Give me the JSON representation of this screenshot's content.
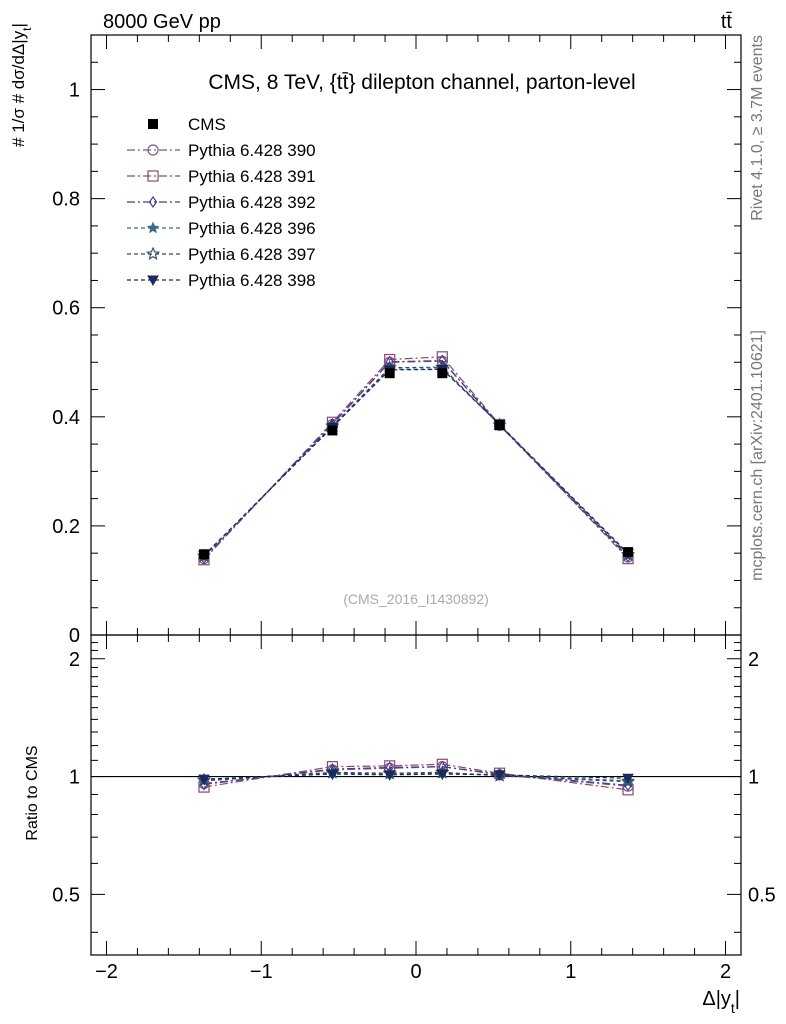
{
  "header": {
    "left": "8000 GeV pp",
    "right": "tt̄"
  },
  "side_labels": {
    "rivet": "Rivet 4.1.0, ≥ 3.7M events",
    "mcplots": "mcplots.cern.ch [arXiv:2401.10621]"
  },
  "chart_data": {
    "type": "line",
    "title": "CMS, 8 TeV, {tt̄} dilepton channel, parton-level",
    "watermark": "(CMS_2016_I1430892)",
    "xlabel": "Δ|y_t|",
    "ylabel": "#1/σ # dσ/dΔ|y_t|",
    "ratio_ylabel": "Ratio to CMS",
    "xlim": [
      -2.1,
      2.1
    ],
    "ylim": [
      0,
      1.1
    ],
    "ratio_ylim": [
      0.35,
      2.3
    ],
    "x_ticks": [
      "−2",
      "−1",
      "0",
      "1",
      "2"
    ],
    "y_ticks": [
      "0",
      "0.2",
      "0.4",
      "0.6",
      "0.8",
      "1"
    ],
    "ratio_ticks": [
      "0.5",
      "1",
      "2"
    ],
    "x": [
      -1.37,
      -0.54,
      -0.17,
      0.17,
      0.54,
      1.37
    ],
    "data": {
      "name": "CMS",
      "values": [
        0.148,
        0.375,
        0.48,
        0.48,
        0.385,
        0.152
      ]
    },
    "series": [
      {
        "name": "Pythia 6.428 390",
        "marker": "circle-open",
        "color": "#7a5a8a",
        "dash": "8 3 2 3",
        "values": [
          0.14,
          0.386,
          0.5,
          0.502,
          0.384,
          0.143
        ]
      },
      {
        "name": "Pythia 6.428 391",
        "marker": "square-open",
        "color": "#8a4a6a",
        "dash": "8 3 2 3",
        "values": [
          0.138,
          0.39,
          0.505,
          0.51,
          0.386,
          0.14
        ]
      },
      {
        "name": "Pythia 6.428 392",
        "marker": "diamond-open",
        "color": "#4a3a8a",
        "dash": "8 3 2 3",
        "values": [
          0.141,
          0.387,
          0.501,
          0.503,
          0.385,
          0.144
        ]
      },
      {
        "name": "Pythia 6.428 396",
        "marker": "star-filled",
        "color": "#3a6a8a",
        "dash": "4 3",
        "values": [
          0.144,
          0.382,
          0.487,
          0.488,
          0.386,
          0.148
        ]
      },
      {
        "name": "Pythia 6.428 397",
        "marker": "star-open",
        "color": "#2a4a6a",
        "dash": "4 3",
        "values": [
          0.145,
          0.383,
          0.49,
          0.491,
          0.385,
          0.147
        ]
      },
      {
        "name": "Pythia 6.428 398",
        "marker": "triangle-down",
        "color": "#1a2a5a",
        "dash": "4 3",
        "values": [
          0.146,
          0.381,
          0.486,
          0.487,
          0.386,
          0.15
        ]
      }
    ],
    "ratio": {
      "Pythia 6.428 390": [
        0.96,
        1.04,
        1.05,
        1.06,
        1.01,
        0.945
      ],
      "Pythia 6.428 391": [
        0.94,
        1.06,
        1.065,
        1.075,
        1.02,
        0.925
      ],
      "Pythia 6.428 392": [
        0.955,
        1.045,
        1.055,
        1.06,
        1.015,
        0.95
      ],
      "Pythia 6.428 396": [
        0.975,
        1.02,
        1.015,
        1.02,
        1.01,
        0.975
      ],
      "Pythia 6.428 397": [
        0.98,
        1.025,
        1.02,
        1.025,
        1.005,
        0.97
      ],
      "Pythia 6.428 398": [
        0.985,
        1.015,
        1.01,
        1.015,
        1.01,
        0.99
      ]
    }
  }
}
